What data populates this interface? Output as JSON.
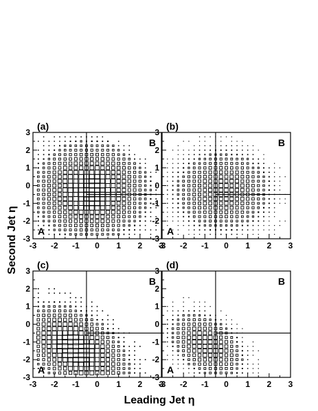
{
  "axes": {
    "xlabel": "Leading Jet η",
    "ylabel": "Second Jet η"
  },
  "chart_data": [
    {
      "type": "heatmap",
      "panel_label": "(a)",
      "region_labels": [
        "A",
        "B"
      ],
      "x_range": [
        -3,
        3
      ],
      "y_range": [
        -3,
        3
      ],
      "x_ticks": [
        "-3",
        "-2",
        "-1",
        "0",
        "1",
        "2",
        "3"
      ],
      "y_ticks": [
        "-3",
        "-2",
        "-1",
        "0",
        "1",
        "2",
        "3"
      ],
      "x_cut": -0.5,
      "y_cut": -0.5,
      "distribution": {
        "bins_x": [
          -2.75,
          2.75
        ],
        "bins_y": [
          -2.75,
          2.75
        ],
        "bin_width": 0.25,
        "center": [
          -0.3,
          -0.3
        ],
        "sigma": [
          1.25,
          1.25
        ],
        "anti_correlation": 0.0,
        "diagonal_edge": 3.0,
        "peak_box_size": 0.24
      }
    },
    {
      "type": "heatmap",
      "panel_label": "(b)",
      "region_labels": [
        "A",
        "B"
      ],
      "x_range": [
        -3,
        3
      ],
      "y_range": [
        -3,
        3
      ],
      "x_ticks": [
        "-3",
        "-2",
        "-1",
        "0",
        "1",
        "2",
        "3"
      ],
      "y_ticks": [
        "-3",
        "-2",
        "-1",
        "0",
        "1",
        "2",
        "3"
      ],
      "x_cut": -0.5,
      "y_cut": -0.5,
      "distribution": {
        "bins_x": [
          -2.75,
          2.75
        ],
        "bins_y": [
          -2.75,
          2.75
        ],
        "bin_width": 0.25,
        "center": [
          -0.2,
          -0.3
        ],
        "sigma": [
          1.1,
          1.1
        ],
        "anti_correlation": 0.0,
        "diagonal_edge": 3.0,
        "peak_box_size": 0.18
      }
    },
    {
      "type": "heatmap",
      "panel_label": "(c)",
      "region_labels": [
        "A",
        "B"
      ],
      "x_range": [
        -3,
        3
      ],
      "y_range": [
        -3,
        3
      ],
      "x_ticks": [
        "-3",
        "-2",
        "-1",
        "0",
        "1",
        "2",
        "3"
      ],
      "y_ticks": [
        "-3",
        "-2",
        "-1",
        "0",
        "1",
        "2",
        "3"
      ],
      "x_cut": -0.5,
      "y_cut": -0.5,
      "distribution": {
        "bins_x": [
          -2.75,
          2.75
        ],
        "bins_y": [
          -2.75,
          2.75
        ],
        "bin_width": 0.25,
        "center": [
          -1.0,
          -1.4
        ],
        "sigma": [
          1.0,
          1.0
        ],
        "anti_correlation": 0.45,
        "diagonal_edge": 0.9,
        "peak_box_size": 0.26
      }
    },
    {
      "type": "heatmap",
      "panel_label": "(d)",
      "region_labels": [
        "A",
        "B"
      ],
      "x_range": [
        -3,
        3
      ],
      "y_range": [
        -3,
        3
      ],
      "x_ticks": [
        "-3",
        "-2",
        "-1",
        "0",
        "1",
        "2",
        "3"
      ],
      "y_ticks": [
        "-3",
        "-2",
        "-1",
        "0",
        "1",
        "2",
        "3"
      ],
      "x_cut": -0.5,
      "y_cut": -0.5,
      "distribution": {
        "bins_x": [
          -2.75,
          2.75
        ],
        "bins_y": [
          -2.75,
          2.75
        ],
        "bin_width": 0.25,
        "center": [
          -0.9,
          -1.2
        ],
        "sigma": [
          0.75,
          0.8
        ],
        "anti_correlation": 0.4,
        "diagonal_edge": 0.3,
        "peak_box_size": 0.2
      }
    }
  ]
}
